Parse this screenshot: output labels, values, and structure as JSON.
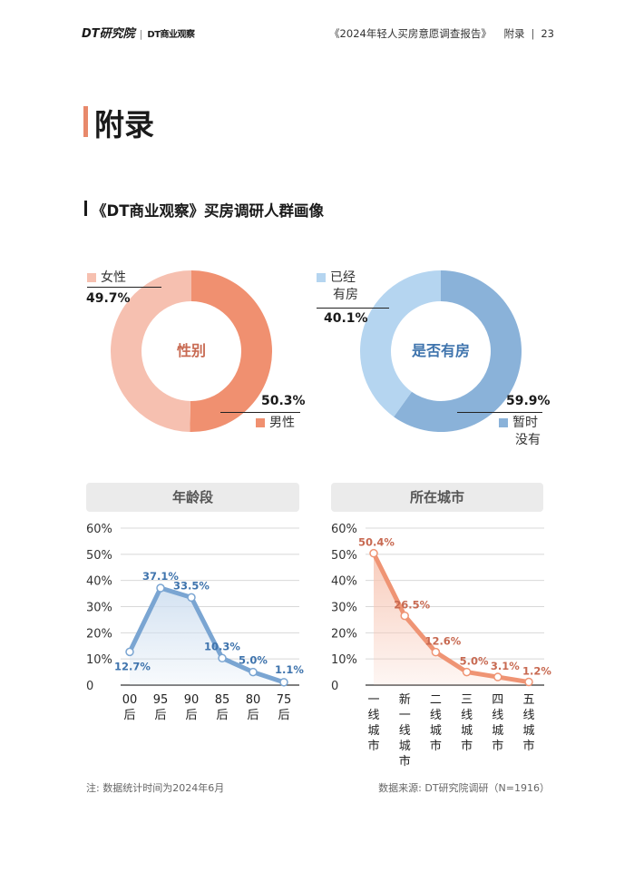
{
  "header": {
    "logo_left": "DT研究院",
    "logo_right": "DT商业观察",
    "report_title": "《2024年轻人买房意愿调查报告》",
    "section": "附录",
    "page_number": "23"
  },
  "page_title": "附录",
  "subtitle": "《DT商业观察》买房调研人群画像",
  "donuts": [
    {
      "center_label": "性别",
      "center_color": "#c86a52",
      "slices": [
        {
          "label": "男性",
          "value": 50.3,
          "display": "50.3%",
          "color": "#f09070"
        },
        {
          "label": "女性",
          "value": 49.7,
          "display": "49.7%",
          "color": "#f6c0b0"
        }
      ]
    },
    {
      "center_label": "是否有房",
      "center_color": "#3f74ad",
      "slices": [
        {
          "label_lines": [
            "暂时",
            "没有"
          ],
          "value": 59.9,
          "display": "59.9%",
          "color": "#8ab2d9"
        },
        {
          "label_lines": [
            "已经",
            "有房"
          ],
          "value": 40.1,
          "display": "40.1%",
          "color": "#b5d5f0"
        }
      ]
    }
  ],
  "chart_data": [
    {
      "type": "line",
      "title": "年龄段",
      "categories": [
        [
          "00",
          "后"
        ],
        [
          "95",
          "后"
        ],
        [
          "90",
          "后"
        ],
        [
          "85",
          "后"
        ],
        [
          "80",
          "后"
        ],
        [
          "75",
          "后"
        ]
      ],
      "values": [
        12.7,
        37.1,
        33.5,
        10.3,
        5.0,
        1.1
      ],
      "value_labels": [
        "12.7%",
        "37.1%",
        "33.5%",
        "10.3%",
        "5.0%",
        "1.1%"
      ],
      "ylim": [
        0,
        60
      ],
      "yticks": [
        "0",
        "10%",
        "20%",
        "30%",
        "40%",
        "50%",
        "60%"
      ],
      "grid": true,
      "line_color": "#7aa5d2",
      "label_color": "#3f74ad",
      "fill_color": "#cfdff0"
    },
    {
      "type": "line",
      "title": "所在城市",
      "categories": [
        [
          "一",
          "线",
          "城",
          "市"
        ],
        [
          "新",
          "一",
          "线",
          "城",
          "市"
        ],
        [
          "二",
          "线",
          "城",
          "市"
        ],
        [
          "三",
          "线",
          "城",
          "市"
        ],
        [
          "四",
          "线",
          "城",
          "市"
        ],
        [
          "五",
          "线",
          "城",
          "市"
        ]
      ],
      "values": [
        50.4,
        26.5,
        12.6,
        5.0,
        3.1,
        1.2
      ],
      "value_labels": [
        "50.4%",
        "26.5%",
        "12.6%",
        "5.0%",
        "3.1%",
        "1.2%"
      ],
      "ylim": [
        0,
        60
      ],
      "yticks": [
        "0",
        "10%",
        "20%",
        "30%",
        "40%",
        "50%",
        "60%"
      ],
      "grid": true,
      "line_color": "#ef9474",
      "label_color": "#c86a52",
      "fill_color": "#f7c6b4"
    }
  ],
  "footer": {
    "note": "注: 数据统计时间为2024年6月",
    "source": "数据来源: DT研究院调研（N=1916）"
  }
}
